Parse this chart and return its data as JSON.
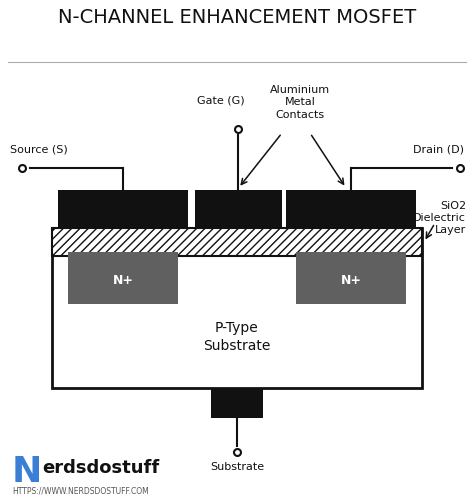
{
  "title": "N-CHANNEL ENHANCEMENT MOSFET",
  "bg_color": "#ffffff",
  "black": "#111111",
  "gray_nplus": "#606060",
  "blue": "#3a7fd5",
  "labels": {
    "source": "Source (S)",
    "drain": "Drain (D)",
    "gate": "Gate (G)",
    "aluminium": "Aluminium\nMetal\nContacts",
    "sio2": "SiO2\nDielectric\nLayer",
    "nplus": "N+",
    "ptype": "P-Type\nSubstrate",
    "substrate": "Substrate",
    "url": "HTTPS://WWW.NERDSDOSTUFF.COM",
    "nerds": "erdsdostuff"
  },
  "font_sizes": {
    "title": 14,
    "labels": 8,
    "nplus": 9,
    "ptype": 10,
    "logo_N": 26,
    "logo_text": 13,
    "url": 5.5
  }
}
